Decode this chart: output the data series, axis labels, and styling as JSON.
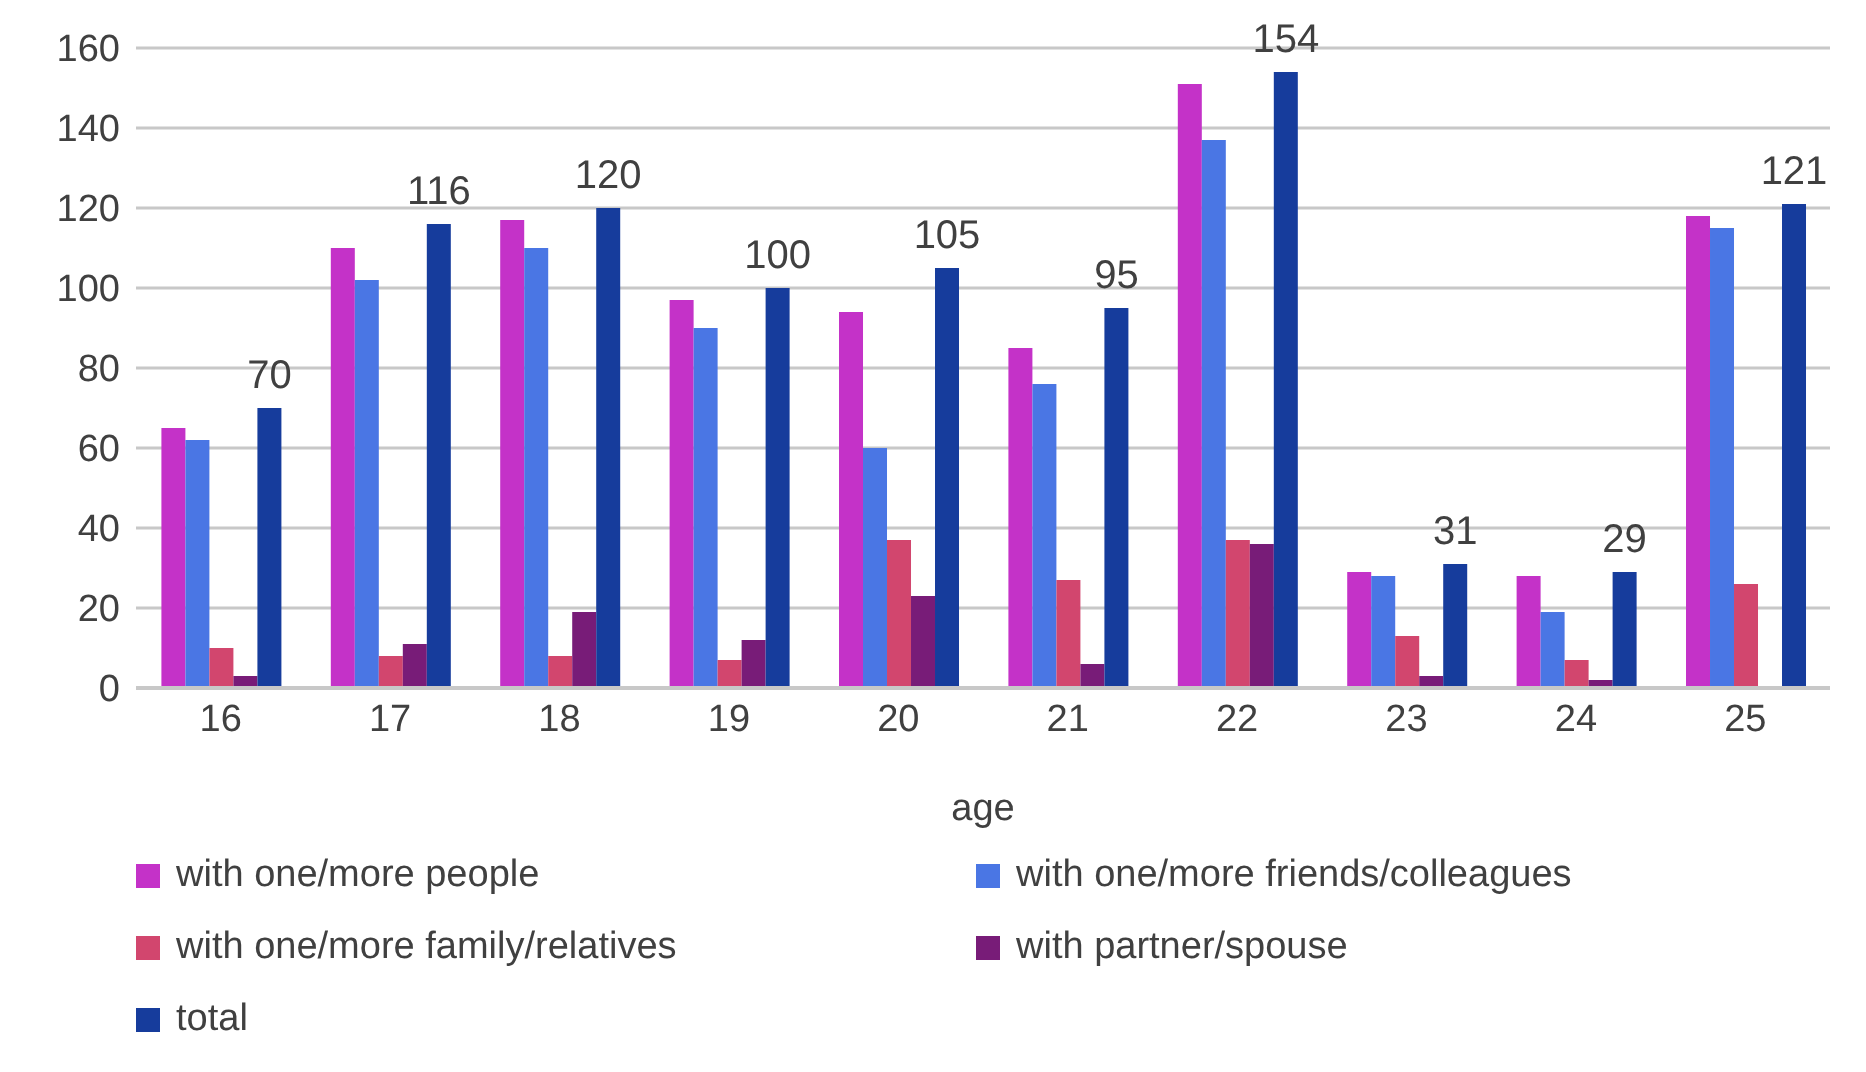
{
  "chart_data": {
    "type": "bar",
    "xlabel": "age",
    "categories": [
      "16",
      "17",
      "18",
      "19",
      "20",
      "21",
      "22",
      "23",
      "24",
      "25"
    ],
    "series": [
      {
        "name": "with one/more people",
        "color": "#c432c8",
        "values": [
          65,
          110,
          117,
          97,
          94,
          85,
          151,
          29,
          28,
          118
        ]
      },
      {
        "name": "with one/more friends/colleagues",
        "color": "#4a76e4",
        "values": [
          62,
          102,
          110,
          90,
          60,
          76,
          137,
          28,
          19,
          115
        ]
      },
      {
        "name": "with one/more family/relatives",
        "color": "#d2466e",
        "values": [
          10,
          8,
          8,
          7,
          37,
          27,
          37,
          13,
          7,
          26
        ]
      },
      {
        "name": "with partner/spouse",
        "color": "#781c78",
        "values": [
          3,
          11,
          19,
          12,
          23,
          6,
          36,
          3,
          2,
          null
        ]
      },
      {
        "name": "total",
        "color": "#163c9c",
        "values": [
          70,
          116,
          120,
          100,
          105,
          95,
          154,
          31,
          29,
          121
        ],
        "value_labels": [
          "70",
          "116",
          "120",
          "100",
          "105",
          "95",
          "154",
          "31",
          "29",
          "121"
        ]
      }
    ],
    "ylim": [
      0,
      160
    ],
    "yticks": [
      0,
      20,
      40,
      60,
      80,
      100,
      120,
      140,
      160
    ],
    "grid": "y",
    "legend": "bottom"
  }
}
